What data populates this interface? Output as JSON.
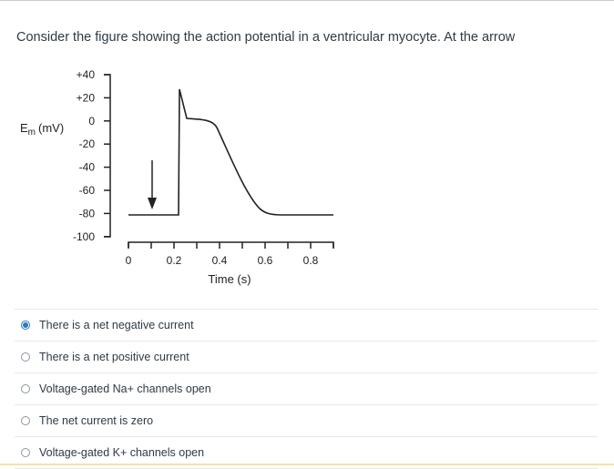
{
  "question": {
    "text": "Consider the figure showing the action potential in a ventricular myocyte. At the arrow"
  },
  "figure": {
    "y_axis_label_main": "E",
    "y_axis_label_sub": "m",
    "y_axis_label_unit": "(mV)",
    "y_ticks": [
      "+40",
      "+20",
      "0",
      "-20",
      "-40",
      "-60",
      "-80",
      "-100"
    ],
    "x_ticks": [
      "0",
      "0.2",
      "0.4",
      "0.6",
      "0.8"
    ],
    "x_axis_label": "Time (s)"
  },
  "answers": [
    {
      "label": "There is a net negative current",
      "selected": true
    },
    {
      "label": "There is a net positive current",
      "selected": false
    },
    {
      "label": "Voltage-gated Na+ channels open",
      "selected": false
    },
    {
      "label": "The net current is zero",
      "selected": false
    },
    {
      "label": "Voltage-gated K+ channels open",
      "selected": false
    }
  ],
  "colors": {
    "accent": "#2b7abc",
    "text": "#2d3b45"
  }
}
